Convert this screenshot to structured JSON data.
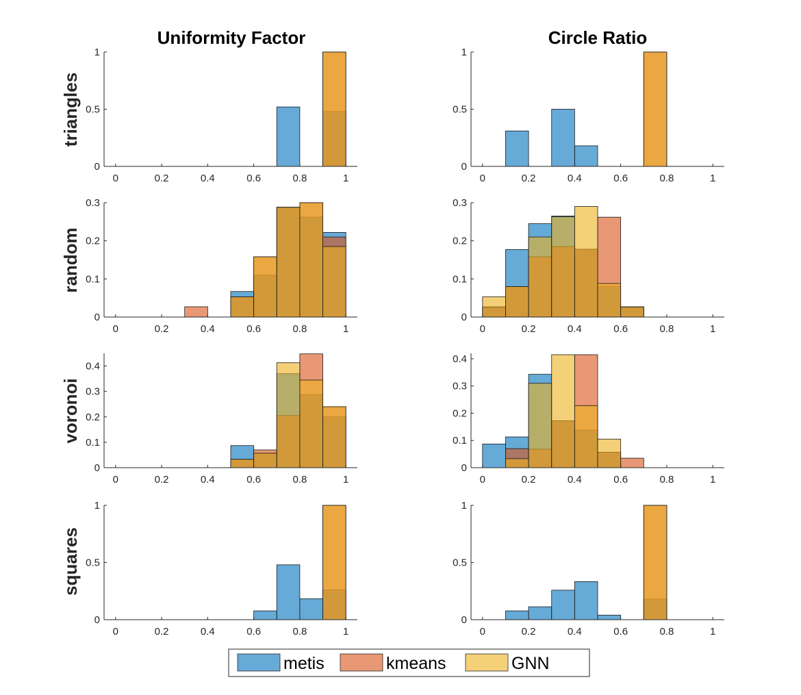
{
  "legend": {
    "items": [
      {
        "label": "metis",
        "color": "#0072BD"
      },
      {
        "label": "kmeans",
        "color": "#D95319"
      },
      {
        "label": "GNN",
        "color": "#EDB120"
      }
    ],
    "placement": "bottom-center"
  },
  "column_titles": [
    "Uniformity Factor",
    "Circle Ratio"
  ],
  "row_labels": [
    "triangles",
    "random",
    "voronoi",
    "squares"
  ],
  "chart_data": [
    {
      "type": "bar",
      "row": "triangles",
      "column": "Uniformity Factor",
      "bin_edges": [
        0,
        0.1,
        0.2,
        0.3,
        0.4,
        0.5,
        0.6,
        0.7,
        0.8,
        0.9,
        1.0
      ],
      "xlim": [
        -0.05,
        1.05
      ],
      "ylim": [
        0,
        1
      ],
      "xticks": [
        "0",
        "0.2",
        "0.4",
        "0.6",
        "0.8",
        "1"
      ],
      "yticks": [
        "0",
        "0.5",
        "1"
      ],
      "series": [
        {
          "name": "metis",
          "values": [
            0,
            0,
            0,
            0,
            0,
            0,
            0,
            0.52,
            0,
            0.48
          ]
        },
        {
          "name": "kmeans",
          "values": [
            0,
            0,
            0,
            0,
            0,
            0,
            0,
            0,
            0,
            1.0
          ]
        },
        {
          "name": "GNN",
          "values": [
            0,
            0,
            0,
            0,
            0,
            0,
            0,
            0,
            0,
            1.0
          ]
        }
      ]
    },
    {
      "type": "bar",
      "row": "triangles",
      "column": "Circle Ratio",
      "bin_edges": [
        0,
        0.1,
        0.2,
        0.3,
        0.4,
        0.5,
        0.6,
        0.7,
        0.8,
        0.9,
        1.0
      ],
      "xlim": [
        -0.05,
        1.05
      ],
      "ylim": [
        0,
        1
      ],
      "xticks": [
        "0",
        "0.2",
        "0.4",
        "0.6",
        "0.8",
        "1"
      ],
      "yticks": [
        "0",
        "0.5",
        "1"
      ],
      "series": [
        {
          "name": "metis",
          "values": [
            0,
            0.31,
            0,
            0.5,
            0.18,
            0,
            0,
            0,
            0,
            0
          ]
        },
        {
          "name": "kmeans",
          "values": [
            0,
            0,
            0,
            0,
            0,
            0,
            0,
            1.0,
            0,
            0
          ]
        },
        {
          "name": "GNN",
          "values": [
            0,
            0,
            0,
            0,
            0,
            0,
            0,
            1.0,
            0,
            0
          ]
        }
      ]
    },
    {
      "type": "bar",
      "row": "random",
      "column": "Uniformity Factor",
      "bin_edges": [
        0,
        0.1,
        0.2,
        0.3,
        0.4,
        0.5,
        0.6,
        0.7,
        0.8,
        0.9,
        1.0
      ],
      "xlim": [
        -0.05,
        1.05
      ],
      "ylim": [
        0,
        0.3
      ],
      "xticks": [
        "0",
        "0.2",
        "0.4",
        "0.6",
        "0.8",
        "1"
      ],
      "yticks": [
        "0",
        "0.1",
        "0.2",
        "0.3"
      ],
      "series": [
        {
          "name": "metis",
          "values": [
            0,
            0,
            0,
            0,
            0,
            0.067,
            0.11,
            0.288,
            0.262,
            0.222
          ]
        },
        {
          "name": "kmeans",
          "values": [
            0,
            0,
            0,
            0.027,
            0,
            0.053,
            0.158,
            0.288,
            0.315,
            0.21
          ]
        },
        {
          "name": "GNN",
          "values": [
            0,
            0,
            0,
            0,
            0,
            0.053,
            0.158,
            0.288,
            0.31,
            0.185
          ]
        }
      ]
    },
    {
      "type": "bar",
      "row": "random",
      "column": "Circle Ratio",
      "bin_edges": [
        0,
        0.1,
        0.2,
        0.3,
        0.4,
        0.5,
        0.6,
        0.7,
        0.8,
        0.9,
        1.0
      ],
      "xlim": [
        -0.05,
        1.05
      ],
      "ylim": [
        0,
        0.3
      ],
      "xticks": [
        "0",
        "0.2",
        "0.4",
        "0.6",
        "0.8",
        "1"
      ],
      "yticks": [
        "0",
        "0.1",
        "0.2",
        "0.3"
      ],
      "series": [
        {
          "name": "metis",
          "values": [
            0.027,
            0.177,
            0.245,
            0.265,
            0.178,
            0.08,
            0.027,
            0,
            0,
            0
          ]
        },
        {
          "name": "kmeans",
          "values": [
            0.025,
            0.08,
            0.158,
            0.185,
            0.178,
            0.262,
            0.025,
            0,
            0,
            0
          ]
        },
        {
          "name": "GNN",
          "values": [
            0.053,
            0.08,
            0.21,
            0.263,
            0.29,
            0.088,
            0.027,
            0,
            0,
            0
          ]
        }
      ]
    },
    {
      "type": "bar",
      "row": "voronoi",
      "column": "Uniformity Factor",
      "bin_edges": [
        0,
        0.1,
        0.2,
        0.3,
        0.4,
        0.5,
        0.6,
        0.7,
        0.8,
        0.9,
        1.0
      ],
      "xlim": [
        -0.05,
        1.05
      ],
      "ylim": [
        0,
        0.45
      ],
      "xticks": [
        "0",
        "0.2",
        "0.4",
        "0.6",
        "0.8",
        "1"
      ],
      "yticks": [
        "0",
        "0.1",
        "0.2",
        "0.3",
        "0.4"
      ],
      "series": [
        {
          "name": "metis",
          "values": [
            0,
            0,
            0,
            0,
            0,
            0.087,
            0.057,
            0.37,
            0.287,
            0.2
          ]
        },
        {
          "name": "kmeans",
          "values": [
            0,
            0,
            0,
            0,
            0,
            0.033,
            0.07,
            0.205,
            0.448,
            0.24
          ]
        },
        {
          "name": "GNN",
          "values": [
            0,
            0,
            0,
            0,
            0,
            0.033,
            0.057,
            0.413,
            0.345,
            0.24
          ]
        }
      ]
    },
    {
      "type": "bar",
      "row": "voronoi",
      "column": "Circle Ratio",
      "bin_edges": [
        0,
        0.1,
        0.2,
        0.3,
        0.4,
        0.5,
        0.6,
        0.7,
        0.8,
        0.9,
        1.0
      ],
      "xlim": [
        -0.05,
        1.05
      ],
      "ylim": [
        0,
        0.42
      ],
      "xticks": [
        "0",
        "0.2",
        "0.4",
        "0.6",
        "0.8",
        "1"
      ],
      "yticks": [
        "0",
        "0.1",
        "0.2",
        "0.3",
        "0.4"
      ],
      "series": [
        {
          "name": "metis",
          "values": [
            0.087,
            0.113,
            0.343,
            0.172,
            0.138,
            0.057,
            0,
            0,
            0,
            0
          ]
        },
        {
          "name": "kmeans",
          "values": [
            0,
            0.07,
            0.068,
            0.172,
            0.415,
            0.057,
            0.035,
            0,
            0,
            0
          ]
        },
        {
          "name": "GNN",
          "values": [
            0,
            0.033,
            0.31,
            0.415,
            0.228,
            0.105,
            0,
            0,
            0,
            0
          ]
        }
      ]
    },
    {
      "type": "bar",
      "row": "squares",
      "column": "Uniformity Factor",
      "bin_edges": [
        0,
        0.1,
        0.2,
        0.3,
        0.4,
        0.5,
        0.6,
        0.7,
        0.8,
        0.9,
        1.0
      ],
      "xlim": [
        -0.05,
        1.05
      ],
      "ylim": [
        0,
        1
      ],
      "xticks": [
        "0",
        "0.2",
        "0.4",
        "0.6",
        "0.8",
        "1"
      ],
      "yticks": [
        "0",
        "0.5",
        "1"
      ],
      "series": [
        {
          "name": "metis",
          "values": [
            0,
            0,
            0,
            0,
            0,
            0,
            0.077,
            0.48,
            0.183,
            0.26
          ]
        },
        {
          "name": "kmeans",
          "values": [
            0,
            0,
            0,
            0,
            0,
            0,
            0,
            0,
            0,
            1.0
          ]
        },
        {
          "name": "GNN",
          "values": [
            0,
            0,
            0,
            0,
            0,
            0,
            0,
            0,
            0,
            1.0
          ]
        }
      ]
    },
    {
      "type": "bar",
      "row": "squares",
      "column": "Circle Ratio",
      "bin_edges": [
        0,
        0.1,
        0.2,
        0.3,
        0.4,
        0.5,
        0.6,
        0.7,
        0.8,
        0.9,
        1.0
      ],
      "xlim": [
        -0.05,
        1.05
      ],
      "ylim": [
        0,
        1
      ],
      "xticks": [
        "0",
        "0.2",
        "0.4",
        "0.6",
        "0.8",
        "1"
      ],
      "yticks": [
        "0",
        "0.5",
        "1"
      ],
      "series": [
        {
          "name": "metis",
          "values": [
            0,
            0.077,
            0.113,
            0.258,
            0.333,
            0.04,
            0,
            0.18,
            0,
            0
          ]
        },
        {
          "name": "kmeans",
          "values": [
            0,
            0,
            0,
            0,
            0,
            0,
            0,
            1.0,
            0,
            0
          ]
        },
        {
          "name": "GNN",
          "values": [
            0,
            0,
            0,
            0,
            0,
            0,
            0,
            1.0,
            0,
            0
          ]
        }
      ]
    }
  ]
}
